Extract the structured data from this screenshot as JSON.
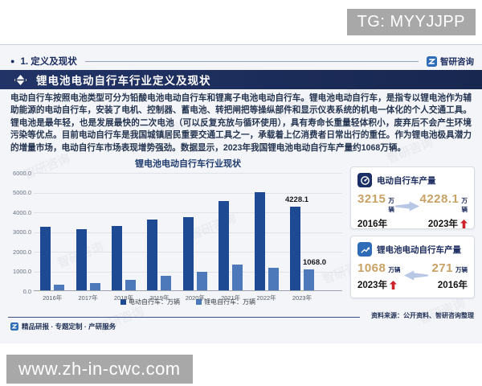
{
  "overlay": {
    "top_badge": "TG: MYYJJPP",
    "bottom_badge": "www.zh-in-cwc.com"
  },
  "header": {
    "section_label": "1. 定义及现状",
    "brand": "智研咨询",
    "title": "锂电池电动自行车行业定义及现状"
  },
  "paragraph": "电动自行车按照电池类型可分为铅酸电池电动自行车和锂离子电池电动自行车。锂电池电动自行车，是指专以锂电池作为辅助能源的电动自行车，安装了电机、控制器、蓄电池、转把闸把等操纵部件和显示仪表系统的机电一体化的个人交通工具。锂电池是最年轻，也是发展最快的二次电池（可以反复充放与循环使用），具有寿命长重量轻体积小，废弃后不会产生环境污染等优点。目前电动自行车是我国城镇居民重要交通工具之一，承载着上亿消费者日常出行的重任。作为锂电池极具潜力的增量市场，电动自行车市场表现增势强劲。数据显示，2023年我国锂电池电动自行车产量约1068万辆。",
  "chart_data": {
    "type": "bar",
    "title": "锂电池电动自行车行业现状",
    "categories": [
      "2016年",
      "2017年",
      "2018年",
      "2019年",
      "2020年",
      "2021年",
      "2022年",
      "2023年"
    ],
    "series": [
      {
        "name": "电动自行车：万辆",
        "color": "#1d4a93",
        "values": [
          3215,
          3113,
          3278,
          3609,
          3700,
          4551,
          4988,
          4228.1
        ]
      },
      {
        "name": "锂电自行车：万辆",
        "color": "#4d79ba",
        "values": [
          271,
          350,
          520,
          740,
          930,
          1290,
          1140,
          1068
        ]
      }
    ],
    "ylim": [
      0,
      6000
    ],
    "yticks": [
      "0.0",
      "1000.0",
      "2000.0",
      "3000.0",
      "4000.0",
      "5000.0",
      "6000.0"
    ],
    "grid": true,
    "legend_position": "bottom",
    "annotations": [
      {
        "series": 0,
        "category": "2023年",
        "label": "4228.1"
      },
      {
        "series": 1,
        "category": "2023年",
        "label": "1068.0"
      }
    ]
  },
  "stat_boxes": [
    {
      "title": "电动自行车产量",
      "icon": "meter-icon",
      "left": {
        "value": "3215",
        "unit": "万辆",
        "year": "2016年",
        "up": false
      },
      "right": {
        "value": "4228.1",
        "unit": "万辆",
        "year": "2023年",
        "up": true
      },
      "arrow_direction": "right"
    },
    {
      "title": "锂电池电动自行车产量",
      "icon": "trend-chart-icon",
      "left": {
        "value": "1068",
        "unit": "万辆",
        "year": "2023年",
        "up": true
      },
      "right": {
        "value": "271",
        "unit": "万辆",
        "year": "2016年",
        "up": false
      },
      "arrow_direction": "left"
    }
  ],
  "footer": {
    "tagline": "精品研报 · 专题定制 · 产研服务",
    "source": "资料来源：公开资料、智研咨询整理"
  },
  "watermark": "智研咨询",
  "colors": {
    "navy": "#1b2b5e",
    "bar_dark": "#1d4a93",
    "bar_light": "#4d79ba",
    "gold": "#c9a265",
    "red": "#cf2128",
    "badge_gray": "#a8a8a8",
    "brand_blue": "#2e6cb7"
  }
}
